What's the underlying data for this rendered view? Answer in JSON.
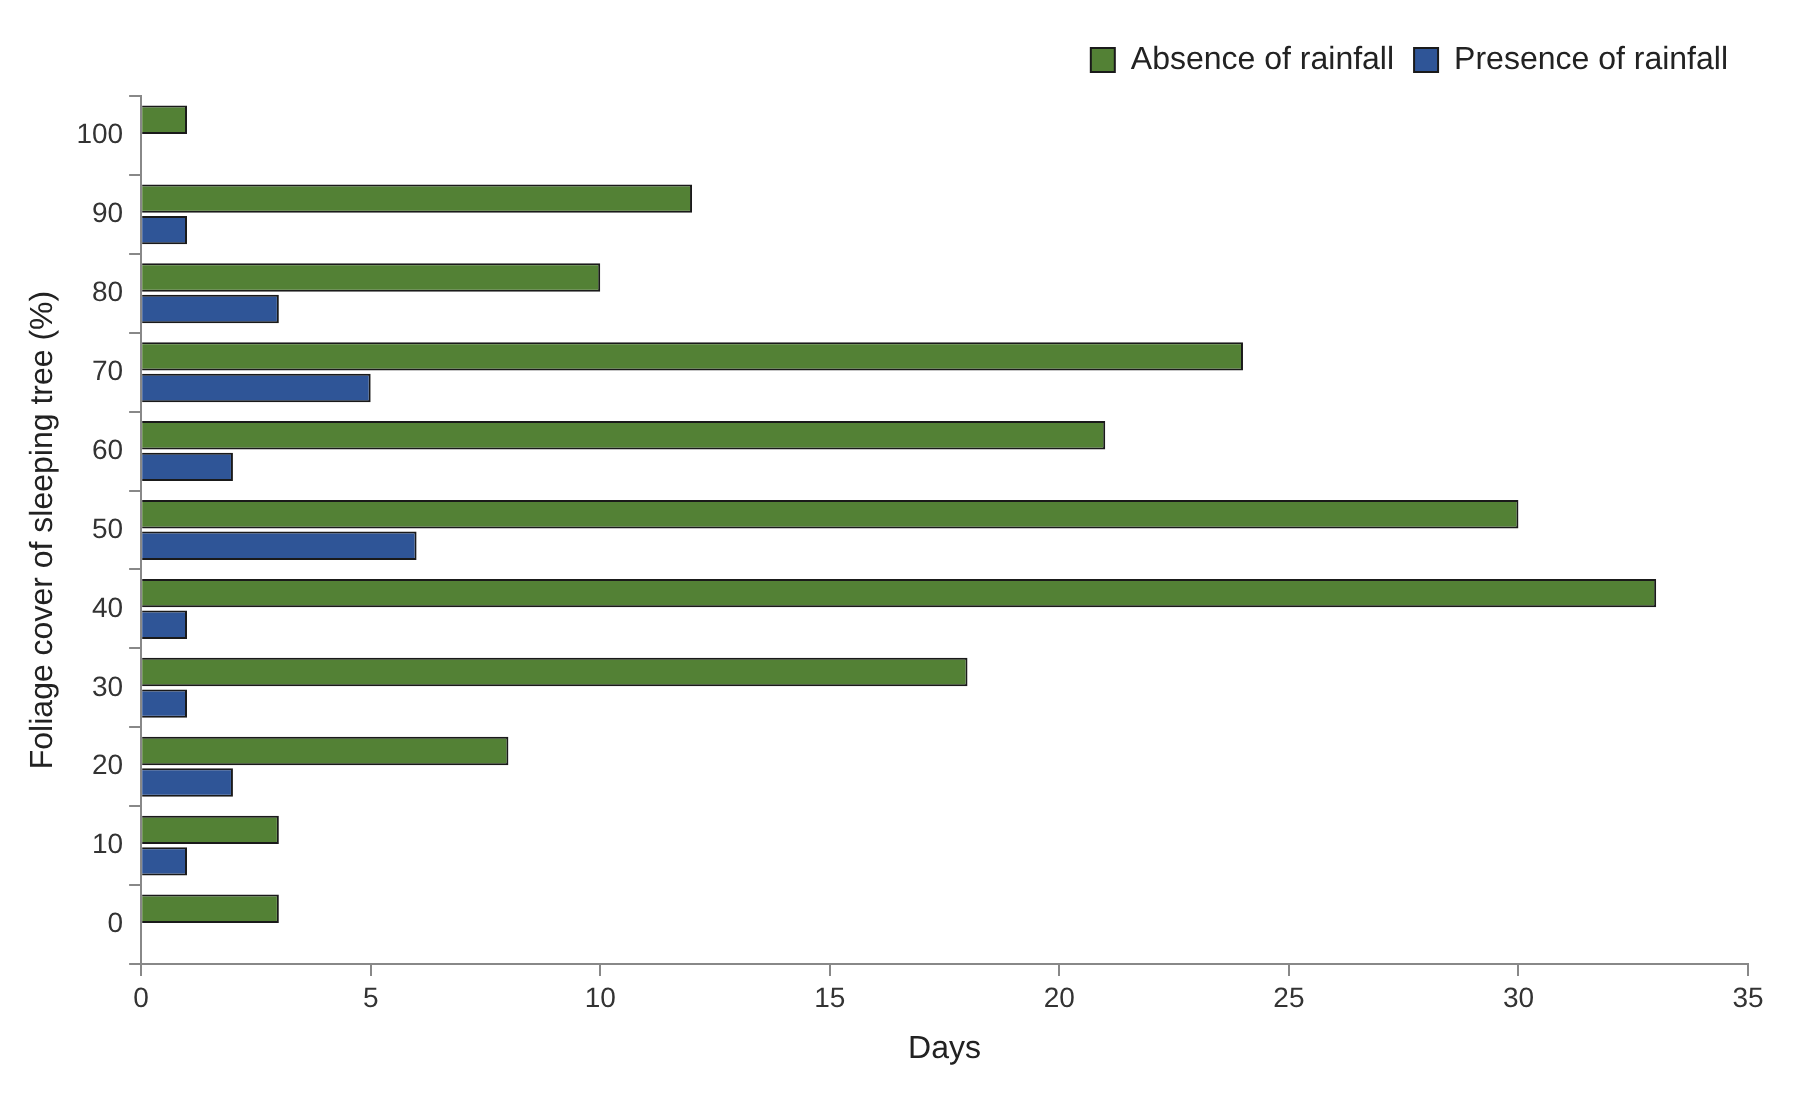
{
  "chart_data": {
    "type": "bar",
    "orientation": "horizontal",
    "xlabel": "Days",
    "ylabel": "Foliage cover of sleeping tree (%)",
    "categories": [
      "100",
      "90",
      "80",
      "70",
      "60",
      "50",
      "40",
      "30",
      "20",
      "10",
      "0"
    ],
    "series": [
      {
        "name": "Absence of rainfall",
        "color": "#538135",
        "values": [
          1,
          12,
          10,
          24,
          21,
          30,
          33,
          18,
          8,
          3,
          3
        ]
      },
      {
        "name": "Presence of rainfall",
        "color": "#2f5597",
        "values": [
          null,
          1,
          3,
          5,
          2,
          6,
          1,
          1,
          2,
          1,
          null
        ]
      }
    ],
    "xlim": [
      0,
      35
    ],
    "xticks": [
      0,
      5,
      10,
      15,
      20,
      25,
      30,
      35
    ],
    "grid": false,
    "legend": "top right"
  }
}
